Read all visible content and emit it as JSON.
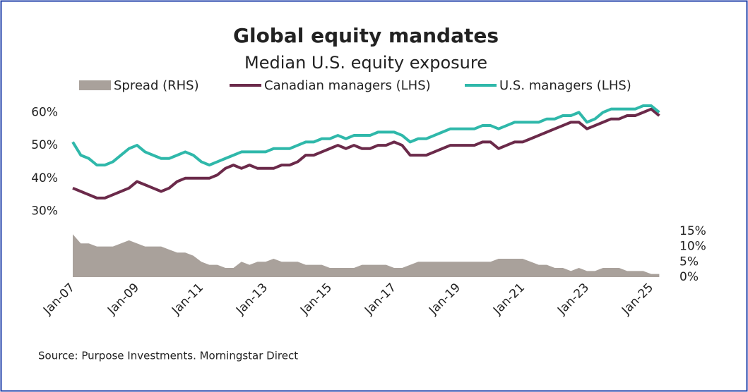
{
  "chart_data": {
    "type": "line",
    "title": "Global equity mandates",
    "subtitle": "Median U.S. equity exposure",
    "source": "Source: Purpose Investments. Morningstar Direct",
    "categories": [
      "Jan-07",
      null,
      null,
      null,
      null,
      null,
      null,
      null,
      "Jan-09",
      null,
      null,
      null,
      null,
      null,
      null,
      null,
      "Jan-11",
      null,
      null,
      null,
      null,
      null,
      null,
      null,
      "Jan-13",
      null,
      null,
      null,
      null,
      null,
      null,
      null,
      "Jan-15",
      null,
      null,
      null,
      null,
      null,
      null,
      null,
      "Jan-17",
      null,
      null,
      null,
      null,
      null,
      null,
      null,
      "Jan-19",
      null,
      null,
      null,
      null,
      null,
      null,
      null,
      "Jan-21",
      null,
      null,
      null,
      null,
      null,
      null,
      null,
      "Jan-23",
      null,
      null,
      null,
      null,
      null,
      null,
      null,
      "Jan-25",
      null
    ],
    "series": [
      {
        "name": "Spread (RHS)",
        "color": "#a9a19b",
        "axis": "y2",
        "type": "area",
        "values": [
          14,
          11,
          11,
          10,
          10,
          10,
          11,
          12,
          11,
          10,
          10,
          10,
          9,
          8,
          8,
          7,
          5,
          4,
          4,
          3,
          3,
          5,
          4,
          5,
          5,
          6,
          5,
          5,
          5,
          4,
          4,
          4,
          3,
          3,
          3,
          3,
          4,
          4,
          4,
          4,
          3,
          3,
          4,
          5,
          5,
          5,
          5,
          5,
          5,
          5,
          5,
          5,
          5,
          6,
          6,
          6,
          6,
          5,
          4,
          4,
          3,
          3,
          2,
          3,
          2,
          2,
          3,
          3,
          3,
          2,
          2,
          2,
          1,
          1
        ]
      },
      {
        "name": "Canadian managers (LHS)",
        "color": "#6b2a4a",
        "values": [
          37,
          36,
          35,
          34,
          34,
          35,
          36,
          37,
          39,
          38,
          37,
          36,
          37,
          39,
          40,
          40,
          40,
          40,
          41,
          43,
          44,
          43,
          44,
          43,
          43,
          43,
          44,
          44,
          45,
          47,
          47,
          48,
          49,
          50,
          49,
          50,
          49,
          49,
          50,
          50,
          51,
          50,
          47,
          47,
          47,
          48,
          49,
          50,
          50,
          50,
          50,
          51,
          51,
          49,
          50,
          51,
          51,
          52,
          53,
          54,
          55,
          56,
          57,
          57,
          55,
          56,
          57,
          58,
          58,
          59,
          59,
          60,
          61,
          59
        ]
      },
      {
        "name": "U.S. managers (LHS)",
        "color": "#2fb8aa",
        "values": [
          51,
          47,
          46,
          44,
          44,
          45,
          47,
          49,
          50,
          48,
          47,
          46,
          46,
          47,
          48,
          47,
          45,
          44,
          45,
          46,
          47,
          48,
          48,
          48,
          48,
          49,
          49,
          49,
          50,
          51,
          51,
          52,
          52,
          53,
          52,
          53,
          53,
          53,
          54,
          54,
          54,
          53,
          51,
          52,
          52,
          53,
          54,
          55,
          55,
          55,
          55,
          56,
          56,
          55,
          56,
          57,
          57,
          57,
          57,
          58,
          58,
          59,
          59,
          60,
          57,
          58,
          60,
          61,
          61,
          61,
          61,
          62,
          62,
          60
        ]
      }
    ],
    "ylim": [
      10,
      62
    ],
    "yticks": [
      {
        "value": 30,
        "label": "30%"
      },
      {
        "value": 40,
        "label": "40%"
      },
      {
        "value": 50,
        "label": "50%"
      },
      {
        "value": 60,
        "label": "60%"
      }
    ],
    "y2lim": [
      0,
      56
    ],
    "y2ticks": [
      {
        "value": 0,
        "label": "0%"
      },
      {
        "value": 5,
        "label": "5%"
      },
      {
        "value": 10,
        "label": "10%"
      },
      {
        "value": 15,
        "label": "15%"
      }
    ],
    "grid": false
  }
}
